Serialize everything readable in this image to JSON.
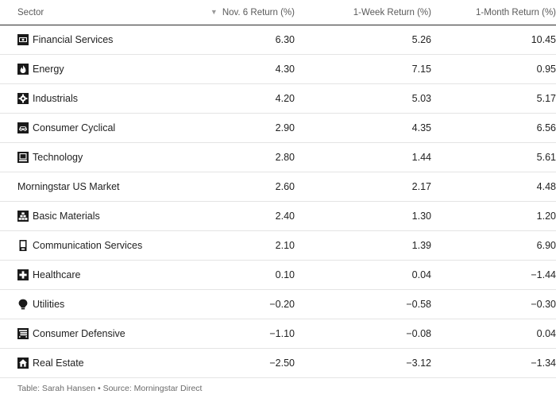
{
  "table": {
    "headers": {
      "sector": "Sector",
      "nov6": "Nov. 6 Return (%)",
      "week": "1-Week Return (%)",
      "month": "1-Month Return (%)"
    },
    "sort_indicator": "descending",
    "rows": [
      {
        "icon": "financial-services-icon",
        "sector": "Financial Services",
        "nov6": "6.30",
        "week": "5.26",
        "month": "10.45"
      },
      {
        "icon": "energy-icon",
        "sector": "Energy",
        "nov6": "4.30",
        "week": "7.15",
        "month": "0.95"
      },
      {
        "icon": "industrials-icon",
        "sector": "Industrials",
        "nov6": "4.20",
        "week": "5.03",
        "month": "5.17"
      },
      {
        "icon": "consumer-cyclical-icon",
        "sector": "Consumer Cyclical",
        "nov6": "2.90",
        "week": "4.35",
        "month": "6.56"
      },
      {
        "icon": "technology-icon",
        "sector": "Technology",
        "nov6": "2.80",
        "week": "1.44",
        "month": "5.61"
      },
      {
        "icon": "",
        "sector": "Morningstar US Market",
        "nov6": "2.60",
        "week": "2.17",
        "month": "4.48"
      },
      {
        "icon": "basic-materials-icon",
        "sector": "Basic Materials",
        "nov6": "2.40",
        "week": "1.30",
        "month": "1.20"
      },
      {
        "icon": "communication-services-icon",
        "sector": "Communication Services",
        "nov6": "2.10",
        "week": "1.39",
        "month": "6.90"
      },
      {
        "icon": "healthcare-icon",
        "sector": "Healthcare",
        "nov6": "0.10",
        "week": "0.04",
        "month": "−1.44"
      },
      {
        "icon": "utilities-icon",
        "sector": "Utilities",
        "nov6": "−0.20",
        "week": "−0.58",
        "month": "−0.30"
      },
      {
        "icon": "consumer-defensive-icon",
        "sector": "Consumer Defensive",
        "nov6": "−1.10",
        "week": "−0.08",
        "month": "0.04"
      },
      {
        "icon": "real-estate-icon",
        "sector": "Real Estate",
        "nov6": "−2.50",
        "week": "−3.12",
        "month": "−1.34"
      }
    ]
  },
  "caption": "Table: Sarah Hansen • Source: Morningstar Direct",
  "colors": {
    "text": "#222222",
    "header_text": "#5a5a5a",
    "rule_dark": "#2b2b2b",
    "rule_light": "#e4e4e4",
    "icon": "#1a1a1a",
    "caption": "#6b6b6b"
  }
}
